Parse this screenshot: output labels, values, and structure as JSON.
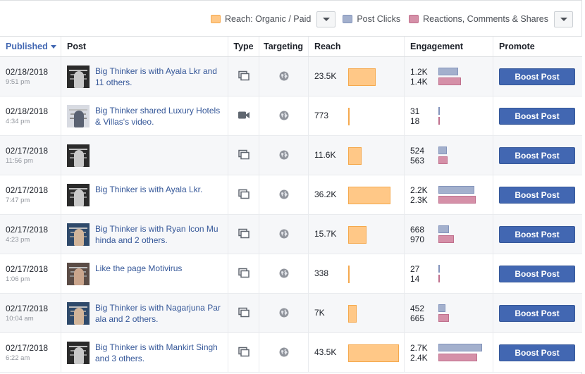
{
  "legend": {
    "reach": {
      "label": "Reach: Organic / Paid",
      "color": "#ffc887"
    },
    "clicks": {
      "label": "Post Clicks",
      "color": "#a3b0cd"
    },
    "reactions": {
      "label": "Reactions, Comments & Shares",
      "color": "#d590a8"
    }
  },
  "headers": {
    "published": "Published",
    "post": "Post",
    "type": "Type",
    "targeting": "Targeting",
    "reach": "Reach",
    "engagement": "Engagement",
    "promote": "Promote"
  },
  "promote_label": "Boost Post",
  "rows": [
    {
      "date": "02/18/2018",
      "time": "9:51 pm",
      "post": "Big Thinker is with Ayala Lkr and 11 others.",
      "type": "photo-icon",
      "reach": "23.5K",
      "reach_value": 23500,
      "clicks": "1.2K",
      "clicks_value": 1200,
      "reactions": "1.4K",
      "reactions_value": 1400,
      "thumb": "dark"
    },
    {
      "date": "02/18/2018",
      "time": "4:34 pm",
      "post": "Big Thinker shared Luxury Hotels & Villas's video.",
      "type": "video-icon",
      "reach": "773",
      "reach_value": 773,
      "clicks": "31",
      "clicks_value": 31,
      "reactions": "18",
      "reactions_value": 18,
      "thumb": "light"
    },
    {
      "date": "02/17/2018",
      "time": "11:56 pm",
      "post": "",
      "type": "photo-icon",
      "reach": "11.6K",
      "reach_value": 11600,
      "clicks": "524",
      "clicks_value": 524,
      "reactions": "563",
      "reactions_value": 563,
      "thumb": "dark"
    },
    {
      "date": "02/17/2018",
      "time": "7:47 pm",
      "post": "Big Thinker is with Ayala Lkr.",
      "type": "photo-icon",
      "reach": "36.2K",
      "reach_value": 36200,
      "clicks": "2.2K",
      "clicks_value": 2200,
      "reactions": "2.3K",
      "reactions_value": 2300,
      "thumb": "dark"
    },
    {
      "date": "02/17/2018",
      "time": "4:23 pm",
      "post": "Big Thinker is with Ryan Icon Mu hinda and 2 others.",
      "type": "photo-icon",
      "reach": "15.7K",
      "reach_value": 15700,
      "clicks": "668",
      "clicks_value": 668,
      "reactions": "970",
      "reactions_value": 970,
      "thumb": "blue"
    },
    {
      "date": "02/17/2018",
      "time": "1:06 pm",
      "post": "Like the page Motivirus",
      "type": "photo-icon",
      "reach": "338",
      "reach_value": 338,
      "clicks": "27",
      "clicks_value": 27,
      "reactions": "14",
      "reactions_value": 14,
      "thumb": "mid"
    },
    {
      "date": "02/17/2018",
      "time": "10:04 am",
      "post": "Big Thinker is with Nagarjuna Par ala and 2 others.",
      "type": "photo-icon",
      "reach": "7K",
      "reach_value": 7000,
      "clicks": "452",
      "clicks_value": 452,
      "reactions": "665",
      "reactions_value": 665,
      "thumb": "blue"
    },
    {
      "date": "02/17/2018",
      "time": "6:22 am",
      "post": "Big Thinker is with Mankirt Singh and 3 others.",
      "type": "photo-icon",
      "reach": "43.5K",
      "reach_value": 43500,
      "clicks": "2.7K",
      "clicks_value": 2700,
      "reactions": "2.4K",
      "reactions_value": 2400,
      "thumb": "dark"
    }
  ]
}
